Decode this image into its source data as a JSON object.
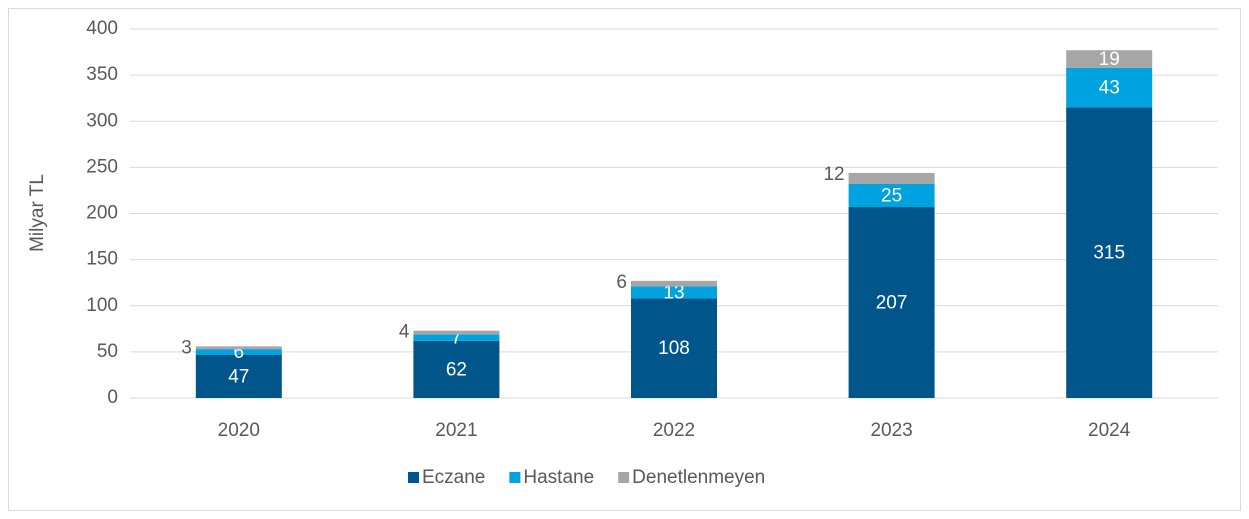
{
  "chart_data": {
    "type": "stacked_bar",
    "y_label": "Milyar TL",
    "categories": [
      "2020",
      "2021",
      "2022",
      "2023",
      "2024"
    ],
    "series": [
      {
        "name": "Eczane",
        "color": "#00568a",
        "values": [
          47,
          62,
          108,
          207,
          315
        ]
      },
      {
        "name": "Hastane",
        "color": "#00a3e0",
        "values": [
          6,
          7,
          13,
          25,
          43
        ]
      },
      {
        "name": "Denetlenmeyen",
        "color": "#a6a6a6",
        "values": [
          3,
          4,
          6,
          12,
          19
        ]
      }
    ],
    "ylim": [
      0,
      400
    ],
    "yticks": [
      0,
      50,
      100,
      150,
      200,
      250,
      300,
      350,
      400
    ],
    "grid": true,
    "legend": "bottom"
  }
}
